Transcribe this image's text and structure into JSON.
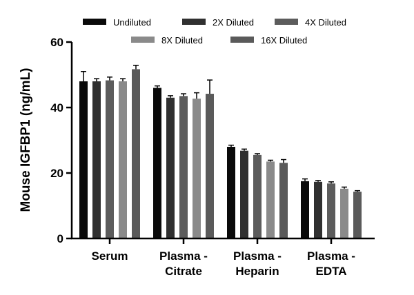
{
  "chart_data": {
    "type": "bar",
    "ylabel": "Mouse IGFBP1 (ng/mL)",
    "xlabel": "",
    "ylim": [
      0,
      60
    ],
    "yticks": [
      "0",
      "20",
      "40",
      "60"
    ],
    "categories": [
      [
        "Serum"
      ],
      [
        "Plasma -",
        "Citrate"
      ],
      [
        "Plasma -",
        "Heparin"
      ],
      [
        "Plasma -",
        "EDTA"
      ]
    ],
    "series": [
      {
        "name": "Undiluted",
        "color": "#0a0a0a",
        "values": [
          48.0,
          46.0,
          28.0,
          17.5
        ],
        "errors": [
          3.0,
          0.6,
          0.5,
          0.7
        ]
      },
      {
        "name": "2X Diluted",
        "color": "#303030",
        "values": [
          48.0,
          43.0,
          26.8,
          17.3
        ],
        "errors": [
          0.8,
          0.6,
          0.5,
          0.4
        ]
      },
      {
        "name": "4X Diluted",
        "color": "#5c5c5c",
        "values": [
          48.3,
          43.5,
          25.5,
          16.8
        ],
        "errors": [
          1.0,
          0.7,
          0.4,
          0.5
        ]
      },
      {
        "name": "8X Diluted",
        "color": "#8a8a8a",
        "values": [
          48.0,
          42.7,
          23.5,
          15.2
        ],
        "errors": [
          0.8,
          1.8,
          0.4,
          0.5
        ]
      },
      {
        "name": "16X Diluted",
        "color": "#5a5a5a",
        "values": [
          51.7,
          44.2,
          23.1,
          14.3
        ],
        "errors": [
          1.2,
          4.2,
          1.0,
          0.3
        ]
      }
    ],
    "legend": "top"
  }
}
